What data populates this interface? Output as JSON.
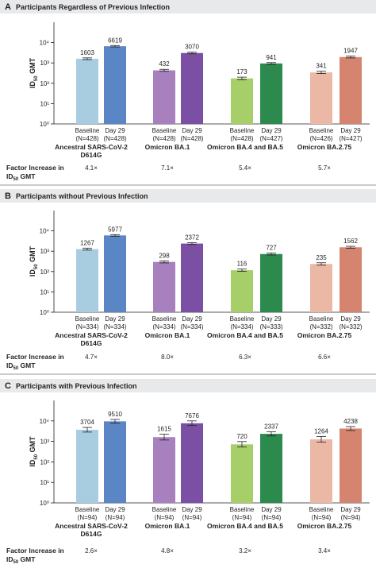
{
  "colors": {
    "panel_bg": "#e8e9ea",
    "header_bg": "#e8e9ea",
    "ancestral_baseline": "#a9cde0",
    "ancestral_day29": "#5a86c6",
    "ba1_baseline": "#a880be",
    "ba1_day29": "#7b4fa3",
    "ba45_baseline": "#a6cf6a",
    "ba45_day29": "#2c8a4e",
    "ba275_baseline": "#ecb8a6",
    "ba275_day29": "#d5846f"
  },
  "factor_label_line1": "Factor Increase in",
  "factor_label_line2_pre": "ID",
  "factor_label_line2_sub": "50",
  "factor_label_line2_post": " GMT",
  "ylabel_pre": "ID",
  "ylabel_sub": "50",
  "ylabel_post": " GMT",
  "chart_data": [
    {
      "type": "bar",
      "panel_letter": "A",
      "title": "Participants Regardless of Previous Infection",
      "ylabel": "ID50 GMT",
      "yscale": "log",
      "ylim": [
        1,
        100000
      ],
      "ytick_labels": [
        "10⁰",
        "10¹",
        "10²",
        "10³",
        "10⁴"
      ],
      "groups": [
        {
          "name_lines": [
            "Ancestral SARS-CoV-2",
            "D614G"
          ],
          "factor": "4.1×",
          "bars": [
            {
              "label": "Baseline",
              "n": "(N=428)",
              "value": 1603,
              "ci": [
                1450,
                1770
              ],
              "color_key": "ancestral_baseline"
            },
            {
              "label": "Day 29",
              "n": "(N=428)",
              "value": 6619,
              "ci": [
                6080,
                7200
              ],
              "color_key": "ancestral_day29"
            }
          ]
        },
        {
          "name_lines": [
            "Omicron BA.1"
          ],
          "factor": "7.1×",
          "bars": [
            {
              "label": "Baseline",
              "n": "(N=428)",
              "value": 432,
              "ci": [
                385,
                485
              ],
              "color_key": "ba1_baseline"
            },
            {
              "label": "Day 29",
              "n": "(N=428)",
              "value": 3070,
              "ci": [
                2800,
                3370
              ],
              "color_key": "ba1_day29"
            }
          ]
        },
        {
          "name_lines": [
            "Omicron BA.4 and BA.5"
          ],
          "factor": "5.4×",
          "bars": [
            {
              "label": "Baseline",
              "n": "(N=428)",
              "value": 173,
              "ci": [
                150,
                200
              ],
              "color_key": "ba45_baseline"
            },
            {
              "label": "Day 29",
              "n": "(N=427)",
              "value": 941,
              "ci": [
                850,
                1040
              ],
              "color_key": "ba45_day29"
            }
          ]
        },
        {
          "name_lines": [
            "Omicron BA.2.75"
          ],
          "factor": "5.7×",
          "bars": [
            {
              "label": "Baseline",
              "n": "(N=426)",
              "value": 341,
              "ci": [
                300,
                390
              ],
              "color_key": "ba275_baseline"
            },
            {
              "label": "Day 29",
              "n": "(N=427)",
              "value": 1947,
              "ci": [
                1760,
                2150
              ],
              "color_key": "ba275_day29"
            }
          ]
        }
      ]
    },
    {
      "type": "bar",
      "panel_letter": "B",
      "title": "Participants without Previous Infection",
      "ylabel": "ID50 GMT",
      "yscale": "log",
      "ylim": [
        1,
        100000
      ],
      "ytick_labels": [
        "10⁰",
        "10¹",
        "10²",
        "10³",
        "10⁴"
      ],
      "groups": [
        {
          "name_lines": [
            "Ancestral SARS-CoV-2",
            "D614G"
          ],
          "factor": "4.7×",
          "bars": [
            {
              "label": "Baseline",
              "n": "(N=334)",
              "value": 1267,
              "ci": [
                1130,
                1420
              ],
              "color_key": "ancestral_baseline"
            },
            {
              "label": "Day 29",
              "n": "(N=334)",
              "value": 5977,
              "ci": [
                5450,
                6550
              ],
              "color_key": "ancestral_day29"
            }
          ]
        },
        {
          "name_lines": [
            "Omicron BA.1"
          ],
          "factor": "8.0×",
          "bars": [
            {
              "label": "Baseline",
              "n": "(N=334)",
              "value": 298,
              "ci": [
                265,
                335
              ],
              "color_key": "ba1_baseline"
            },
            {
              "label": "Day 29",
              "n": "(N=334)",
              "value": 2372,
              "ci": [
                2130,
                2640
              ],
              "color_key": "ba1_day29"
            }
          ]
        },
        {
          "name_lines": [
            "Omicron BA.4 and BA.5"
          ],
          "factor": "6.3×",
          "bars": [
            {
              "label": "Baseline",
              "n": "(N=334)",
              "value": 116,
              "ci": [
                102,
                132
              ],
              "color_key": "ba45_baseline"
            },
            {
              "label": "Day 29",
              "n": "(N=333)",
              "value": 727,
              "ci": [
                650,
                815
              ],
              "color_key": "ba45_day29"
            }
          ]
        },
        {
          "name_lines": [
            "Omicron BA.2.75"
          ],
          "factor": "6.6×",
          "bars": [
            {
              "label": "Baseline",
              "n": "(N=332)",
              "value": 235,
              "ci": [
                205,
                270
              ],
              "color_key": "ba275_baseline"
            },
            {
              "label": "Day 29",
              "n": "(N=332)",
              "value": 1562,
              "ci": [
                1400,
                1740
              ],
              "color_key": "ba275_day29"
            }
          ]
        }
      ]
    },
    {
      "type": "bar",
      "panel_letter": "C",
      "title": "Participants with Previous Infection",
      "ylabel": "ID50 GMT",
      "yscale": "log",
      "ylim": [
        1,
        100000
      ],
      "ytick_labels": [
        "10⁰",
        "10¹",
        "10²",
        "10³",
        "10⁴"
      ],
      "groups": [
        {
          "name_lines": [
            "Ancestral SARS-CoV-2",
            "D614G"
          ],
          "factor": "2.6×",
          "bars": [
            {
              "label": "Baseline",
              "n": "(N=94)",
              "value": 3704,
              "ci": [
                2850,
                4800
              ],
              "color_key": "ancestral_baseline"
            },
            {
              "label": "Day 29",
              "n": "(N=94)",
              "value": 9510,
              "ci": [
                7700,
                11750
              ],
              "color_key": "ancestral_day29"
            }
          ]
        },
        {
          "name_lines": [
            "Omicron BA.1"
          ],
          "factor": "4.8×",
          "bars": [
            {
              "label": "Baseline",
              "n": "(N=94)",
              "value": 1615,
              "ci": [
                1170,
                2230
              ],
              "color_key": "ba1_baseline"
            },
            {
              "label": "Day 29",
              "n": "(N=94)",
              "value": 7676,
              "ci": [
                5900,
                10000
              ],
              "color_key": "ba1_day29"
            }
          ]
        },
        {
          "name_lines": [
            "Omicron BA.4 and BA.5"
          ],
          "factor": "3.2×",
          "bars": [
            {
              "label": "Baseline",
              "n": "(N=94)",
              "value": 720,
              "ci": [
                530,
                980
              ],
              "color_key": "ba45_baseline"
            },
            {
              "label": "Day 29",
              "n": "(N=94)",
              "value": 2337,
              "ci": [
                1850,
                2950
              ],
              "color_key": "ba45_day29"
            }
          ]
        },
        {
          "name_lines": [
            "Omicron BA.2.75"
          ],
          "factor": "3.4×",
          "bars": [
            {
              "label": "Baseline",
              "n": "(N=94)",
              "value": 1264,
              "ci": [
                920,
                1740
              ],
              "color_key": "ba275_baseline"
            },
            {
              "label": "Day 29",
              "n": "(N=94)",
              "value": 4238,
              "ci": [
                3400,
                5280
              ],
              "color_key": "ba275_day29"
            }
          ]
        }
      ]
    }
  ]
}
